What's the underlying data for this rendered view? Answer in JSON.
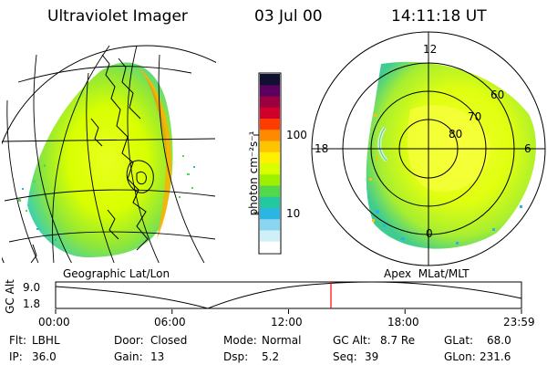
{
  "header": {
    "instrument": "Ultraviolet Imager",
    "date": "03 Jul 00",
    "time": "14:11:18 UT"
  },
  "colorbar": {
    "label": "photon cm⁻²s⁻¹",
    "ticks": [
      "100",
      "10"
    ],
    "colors": [
      "#101030",
      "#5b0060",
      "#9a0040",
      "#d0002a",
      "#ff3c00",
      "#ff8a00",
      "#ffc400",
      "#fff000",
      "#d8ff00",
      "#9eef00",
      "#52d84a",
      "#22c8a0",
      "#2ab6e0",
      "#8ad6f0",
      "#d0f0f8",
      "#ffffff"
    ]
  },
  "panels": {
    "left_caption": "Geographic Lat/Lon",
    "right_caption": "Apex  MLat/MLT"
  },
  "polar": {
    "mlt_labels": [
      "12",
      "18",
      "6",
      "0"
    ],
    "mlat_labels": [
      "60",
      "70",
      "80"
    ]
  },
  "altitude_plot": {
    "ylabel": "GC Alt",
    "yticks": [
      "9.0",
      "1.8"
    ],
    "xticks": [
      "00:00",
      "06:00",
      "12:00",
      "18:00",
      "23:59"
    ],
    "marker_color": "#ff0000"
  },
  "status": {
    "flt_label": "Flt:",
    "flt_value": "LBHL",
    "door_label": "Door:",
    "door_value": "Closed",
    "mode_label": "Mode:",
    "mode_value": "Normal",
    "gcalt_label": "GC Alt:",
    "gcalt_value": "8.7 Re",
    "glat_label": "GLat:",
    "glat_value": "68.0",
    "ip_label": "IP:",
    "ip_value": "36.0",
    "gain_label": "Gain:",
    "gain_value": "13",
    "dsp_label": "Dsp:",
    "dsp_value": "5.2",
    "seq_label": "Seq:",
    "seq_value": "39",
    "glon_label": "GLon:",
    "glon_value": "231.6"
  }
}
